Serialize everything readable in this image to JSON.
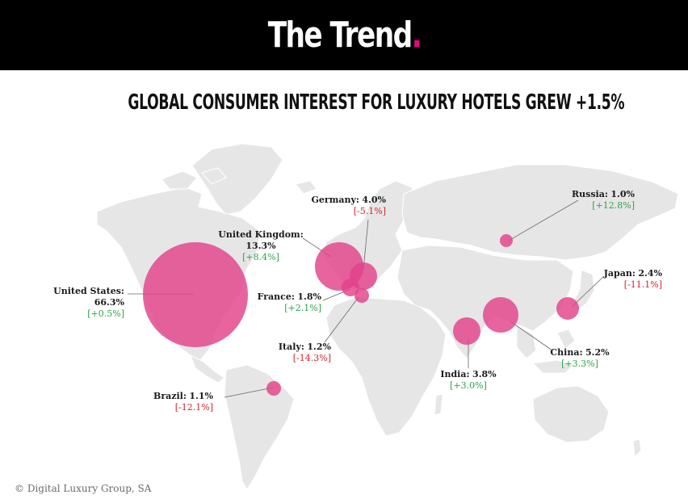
{
  "brand": {
    "title": "The Trend",
    "dot": "."
  },
  "subtitle": "GLOBAL CONSUMER INTEREST FOR LUXURY HOTELS GREW +1.5%",
  "colors": {
    "accent": "#ec008c",
    "bubble": "#e2428a",
    "positive": "#2ca24a",
    "negative": "#d9202a",
    "land": "#e6e6e6"
  },
  "countries": {
    "us": {
      "name": "United  States:",
      "share": "66.3%",
      "change": "[+0.5%]",
      "share_value": 66.3,
      "trend": "positive"
    },
    "uk": {
      "name": "United Kingdom:",
      "share": "13.3%",
      "change": "[+8.4%]",
      "share_value": 13.3,
      "trend": "positive"
    },
    "germany": {
      "name": "Germany:",
      "share": "4.0%",
      "change": "[-5.1%]",
      "share_value": 4.0,
      "trend": "negative"
    },
    "france": {
      "name": "France:",
      "share": "1.8%",
      "change": "[+2.1%]",
      "share_value": 1.8,
      "trend": "positive"
    },
    "italy": {
      "name": "Italy:",
      "share": "1.2%",
      "change": "[-14.3%]",
      "share_value": 1.2,
      "trend": "negative"
    },
    "russia": {
      "name": "Russia:",
      "share": "1.0%",
      "change": "[+12.8%]",
      "share_value": 1.0,
      "trend": "positive"
    },
    "japan": {
      "name": "Japan:",
      "share": "2.4%",
      "change": "[-11.1%]",
      "share_value": 2.4,
      "trend": "negative"
    },
    "china": {
      "name": "China:",
      "share": "5.2%",
      "change": "[+3.3%]",
      "share_value": 5.2,
      "trend": "positive"
    },
    "india": {
      "name": "India:",
      "share": "3.8%",
      "change": "[+3.0%]",
      "share_value": 3.8,
      "trend": "positive"
    },
    "brazil": {
      "name": "Brazil:",
      "share": "1.1%",
      "change": "[-12.1%]",
      "share_value": 1.1,
      "trend": "negative"
    }
  },
  "copyright": "© Digital Luxury Group, SA"
}
